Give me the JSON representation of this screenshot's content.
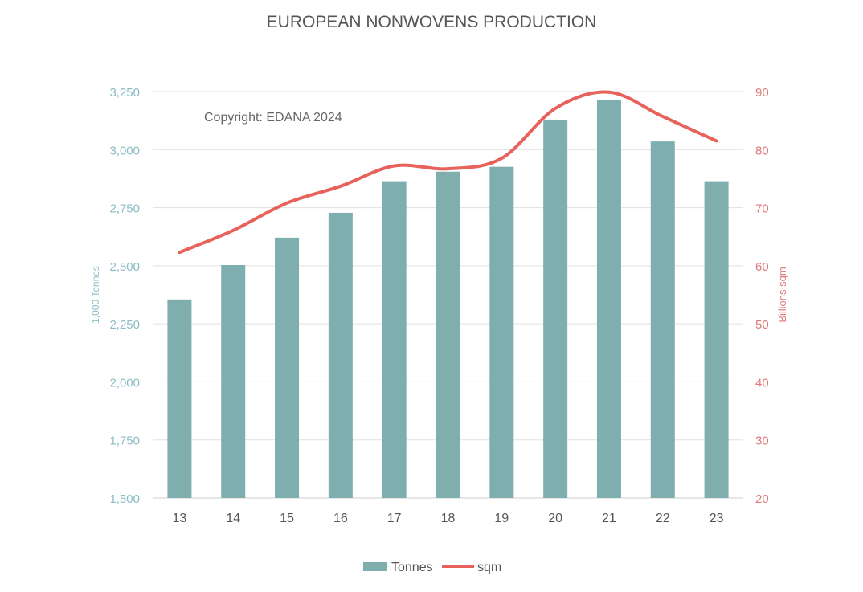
{
  "chart_data": {
    "type": "bar",
    "title": "EUROPEAN NONWOVENS PRODUCTION",
    "annotation": "Copyright:  EDANA 2024",
    "categories": [
      "13",
      "14",
      "15",
      "16",
      "17",
      "18",
      "19",
      "20",
      "21",
      "22",
      "23"
    ],
    "series": [
      {
        "name": "Tonnes",
        "type": "bar",
        "axis": "left",
        "color": "#7eaeae",
        "values": [
          2355,
          2503,
          2621,
          2728,
          2864,
          2905,
          2926,
          3128,
          3212,
          3035,
          2864
        ]
      },
      {
        "name": "sqm",
        "type": "line",
        "smooth": true,
        "axis": "right",
        "color": "#e8625c",
        "values": [
          62.3,
          66.1,
          70.8,
          73.7,
          77.2,
          76.7,
          78.5,
          87.1,
          89.9,
          85.7,
          81.5
        ]
      }
    ],
    "ylabel": "1,000 Tonnes",
    "y2label": "Billions sqm",
    "ylim": [
      1500,
      3250
    ],
    "y2lim": [
      20,
      90
    ],
    "yticks": [
      "1,500",
      "1,750",
      "2,000",
      "2,250",
      "2,500",
      "2,750",
      "3,000",
      "3,250"
    ],
    "y2ticks": [
      "20",
      "30",
      "40",
      "50",
      "60",
      "70",
      "80",
      "90"
    ],
    "grid": true,
    "legend": "bottom",
    "left_axis_color": "#8bbcc4",
    "right_axis_color": "#e07878"
  }
}
